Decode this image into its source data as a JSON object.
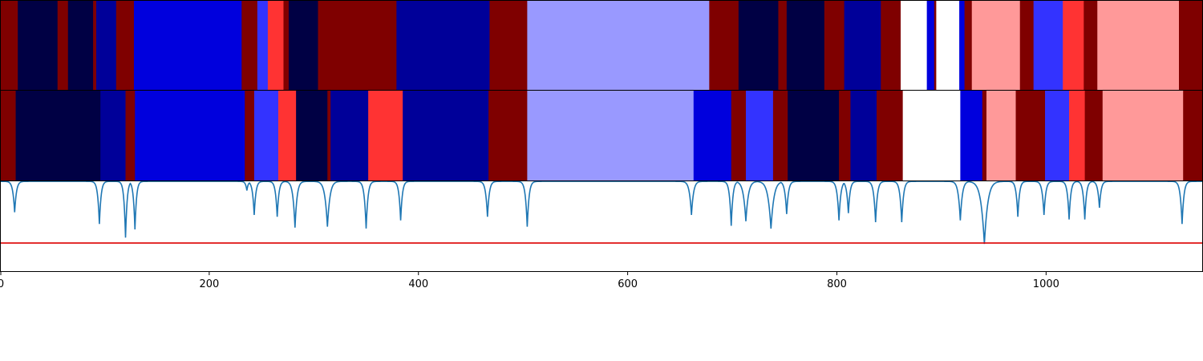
{
  "chart_data": {
    "type": "segmentation-with-signal",
    "title": "",
    "xlabel": "",
    "ylabel": "",
    "xlim": [
      0,
      1150
    ],
    "x_ticks": [
      0,
      200,
      400,
      600,
      800,
      1000
    ],
    "grid": false,
    "legend": "none",
    "palette": {
      "dark_red": "#7f0000",
      "navy": "#000044",
      "dark_blue": "#000099",
      "blue": "#0000dd",
      "medium_blue": "#3333ff",
      "red": "#ff3333",
      "lavender": "#9999ff",
      "white": "#ffffff",
      "pink": "#ff9999",
      "signal_line": "#1f77b4",
      "threshold_line": "#dd0000"
    },
    "tracks": [
      {
        "segments": [
          {
            "start": 0,
            "end": 17,
            "color": "dark_red"
          },
          {
            "start": 17,
            "end": 55,
            "color": "navy"
          },
          {
            "start": 55,
            "end": 65,
            "color": "dark_red"
          },
          {
            "start": 65,
            "end": 89,
            "color": "navy"
          },
          {
            "start": 89,
            "end": 92,
            "color": "dark_red"
          },
          {
            "start": 92,
            "end": 111,
            "color": "dark_blue"
          },
          {
            "start": 111,
            "end": 128,
            "color": "dark_red"
          },
          {
            "start": 128,
            "end": 231,
            "color": "blue"
          },
          {
            "start": 231,
            "end": 246,
            "color": "dark_red"
          },
          {
            "start": 246,
            "end": 256,
            "color": "medium_blue"
          },
          {
            "start": 256,
            "end": 271,
            "color": "red"
          },
          {
            "start": 271,
            "end": 276,
            "color": "dark_red"
          },
          {
            "start": 276,
            "end": 304,
            "color": "navy"
          },
          {
            "start": 304,
            "end": 379,
            "color": "dark_red"
          },
          {
            "start": 379,
            "end": 468,
            "color": "dark_blue"
          },
          {
            "start": 468,
            "end": 504,
            "color": "dark_red"
          },
          {
            "start": 504,
            "end": 678,
            "color": "lavender"
          },
          {
            "start": 678,
            "end": 706,
            "color": "dark_red"
          },
          {
            "start": 706,
            "end": 744,
            "color": "navy"
          },
          {
            "start": 744,
            "end": 752,
            "color": "dark_red"
          },
          {
            "start": 752,
            "end": 788,
            "color": "navy"
          },
          {
            "start": 788,
            "end": 807,
            "color": "dark_red"
          },
          {
            "start": 807,
            "end": 842,
            "color": "dark_blue"
          },
          {
            "start": 842,
            "end": 861,
            "color": "dark_red"
          },
          {
            "start": 861,
            "end": 886,
            "color": "white"
          },
          {
            "start": 886,
            "end": 893,
            "color": "blue"
          },
          {
            "start": 893,
            "end": 895,
            "color": "dark_red"
          },
          {
            "start": 895,
            "end": 917,
            "color": "white"
          },
          {
            "start": 917,
            "end": 922,
            "color": "blue"
          },
          {
            "start": 922,
            "end": 929,
            "color": "dark_red"
          },
          {
            "start": 929,
            "end": 975,
            "color": "pink"
          },
          {
            "start": 975,
            "end": 988,
            "color": "dark_red"
          },
          {
            "start": 988,
            "end": 1016,
            "color": "medium_blue"
          },
          {
            "start": 1016,
            "end": 1036,
            "color": "red"
          },
          {
            "start": 1036,
            "end": 1049,
            "color": "dark_red"
          },
          {
            "start": 1049,
            "end": 1127,
            "color": "pink"
          },
          {
            "start": 1127,
            "end": 1150,
            "color": "dark_red"
          }
        ]
      },
      {
        "segments": [
          {
            "start": 0,
            "end": 15,
            "color": "dark_red"
          },
          {
            "start": 15,
            "end": 96,
            "color": "navy"
          },
          {
            "start": 96,
            "end": 120,
            "color": "dark_blue"
          },
          {
            "start": 120,
            "end": 129,
            "color": "dark_red"
          },
          {
            "start": 129,
            "end": 234,
            "color": "blue"
          },
          {
            "start": 234,
            "end": 243,
            "color": "dark_red"
          },
          {
            "start": 243,
            "end": 266,
            "color": "medium_blue"
          },
          {
            "start": 266,
            "end": 283,
            "color": "red"
          },
          {
            "start": 283,
            "end": 313,
            "color": "navy"
          },
          {
            "start": 313,
            "end": 316,
            "color": "dark_red"
          },
          {
            "start": 316,
            "end": 352,
            "color": "dark_blue"
          },
          {
            "start": 352,
            "end": 385,
            "color": "red"
          },
          {
            "start": 385,
            "end": 467,
            "color": "dark_blue"
          },
          {
            "start": 467,
            "end": 504,
            "color": "dark_red"
          },
          {
            "start": 504,
            "end": 663,
            "color": "lavender"
          },
          {
            "start": 663,
            "end": 699,
            "color": "blue"
          },
          {
            "start": 699,
            "end": 713,
            "color": "dark_red"
          },
          {
            "start": 713,
            "end": 739,
            "color": "medium_blue"
          },
          {
            "start": 739,
            "end": 753,
            "color": "dark_red"
          },
          {
            "start": 753,
            "end": 802,
            "color": "navy"
          },
          {
            "start": 802,
            "end": 813,
            "color": "dark_red"
          },
          {
            "start": 813,
            "end": 838,
            "color": "dark_blue"
          },
          {
            "start": 838,
            "end": 863,
            "color": "dark_red"
          },
          {
            "start": 863,
            "end": 918,
            "color": "white"
          },
          {
            "start": 918,
            "end": 939,
            "color": "blue"
          },
          {
            "start": 939,
            "end": 943,
            "color": "dark_red"
          },
          {
            "start": 943,
            "end": 971,
            "color": "pink"
          },
          {
            "start": 971,
            "end": 999,
            "color": "dark_red"
          },
          {
            "start": 999,
            "end": 1022,
            "color": "medium_blue"
          },
          {
            "start": 1022,
            "end": 1037,
            "color": "red"
          },
          {
            "start": 1037,
            "end": 1054,
            "color": "dark_red"
          },
          {
            "start": 1054,
            "end": 1131,
            "color": "pink"
          },
          {
            "start": 1131,
            "end": 1150,
            "color": "dark_red"
          }
        ]
      }
    ],
    "signal": {
      "ylim": [
        0,
        1
      ],
      "baseline": 0.99,
      "threshold": 0.31,
      "dips": [
        {
          "x": 14,
          "depth": 0.65,
          "width": 1.6
        },
        {
          "x": 95,
          "depth": 0.52,
          "width": 1.5
        },
        {
          "x": 120,
          "depth": 0.37,
          "width": 1.4
        },
        {
          "x": 129,
          "depth": 0.46,
          "width": 1.4
        },
        {
          "x": 236,
          "depth": 0.89,
          "width": 1.2
        },
        {
          "x": 243,
          "depth": 0.62,
          "width": 1.5
        },
        {
          "x": 265,
          "depth": 0.6,
          "width": 1.5
        },
        {
          "x": 282,
          "depth": 0.48,
          "width": 1.8
        },
        {
          "x": 313,
          "depth": 0.49,
          "width": 2.2
        },
        {
          "x": 350,
          "depth": 0.47,
          "width": 1.6
        },
        {
          "x": 383,
          "depth": 0.56,
          "width": 1.5
        },
        {
          "x": 466,
          "depth": 0.6,
          "width": 1.6
        },
        {
          "x": 504,
          "depth": 0.49,
          "width": 1.6
        },
        {
          "x": 661,
          "depth": 0.62,
          "width": 1.8
        },
        {
          "x": 699,
          "depth": 0.5,
          "width": 1.5
        },
        {
          "x": 713,
          "depth": 0.55,
          "width": 2.2
        },
        {
          "x": 737,
          "depth": 0.47,
          "width": 2.6
        },
        {
          "x": 752,
          "depth": 0.63,
          "width": 1.6
        },
        {
          "x": 802,
          "depth": 0.56,
          "width": 1.6
        },
        {
          "x": 811,
          "depth": 0.64,
          "width": 1.5
        },
        {
          "x": 837,
          "depth": 0.54,
          "width": 1.6
        },
        {
          "x": 862,
          "depth": 0.54,
          "width": 1.6
        },
        {
          "x": 918,
          "depth": 0.56,
          "width": 1.8
        },
        {
          "x": 941,
          "depth": 0.3,
          "width": 3.0
        },
        {
          "x": 973,
          "depth": 0.6,
          "width": 1.5
        },
        {
          "x": 998,
          "depth": 0.62,
          "width": 1.6
        },
        {
          "x": 1022,
          "depth": 0.57,
          "width": 1.5
        },
        {
          "x": 1037,
          "depth": 0.57,
          "width": 1.5
        },
        {
          "x": 1051,
          "depth": 0.7,
          "width": 1.5
        },
        {
          "x": 1130,
          "depth": 0.52,
          "width": 1.6
        }
      ]
    }
  }
}
